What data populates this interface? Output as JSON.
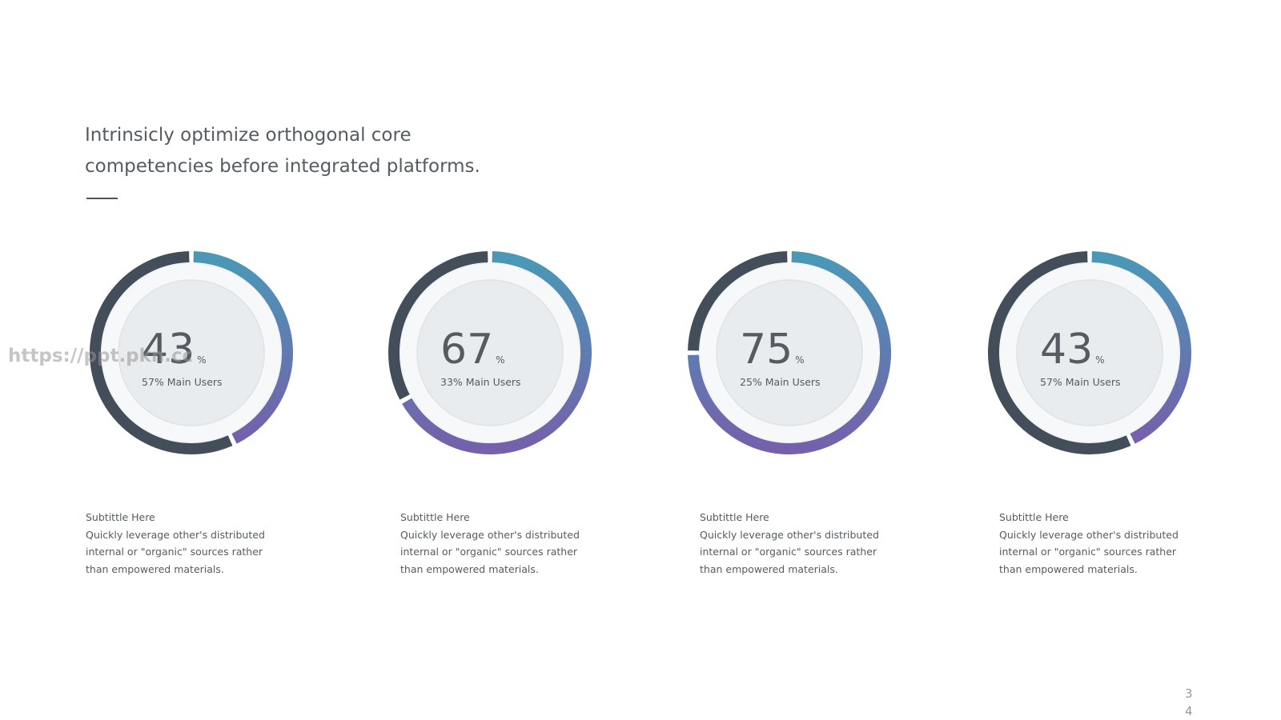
{
  "title": "Intrinsicly optimize orthogonal core competencies before integrated platforms.",
  "watermark": "https://ppt.pkn.cc",
  "page_number": "34",
  "chart_data": [
    {
      "type": "donut",
      "values": [
        43,
        57
      ],
      "unit": "%",
      "label": "57% Main Users",
      "subtitle": "Subtittle Here",
      "text": "Quickly leverage other's distributed internal or \"organic\" sources rather than empowered materials.",
      "gradient": [
        "#4a98b6",
        "#7560ab"
      ],
      "rest_color": "#434e5a"
    },
    {
      "type": "donut",
      "values": [
        67,
        33
      ],
      "unit": "%",
      "label": "33% Main Users",
      "subtitle": "Subtittle Here",
      "text": "Quickly leverage other's distributed internal or \"organic\" sources rather than empowered materials.",
      "gradient": [
        "#4a98b6",
        "#7560ab"
      ],
      "rest_color": "#434e5a"
    },
    {
      "type": "donut",
      "values": [
        75,
        25
      ],
      "unit": "%",
      "label": "25% Main Users",
      "subtitle": "Subtittle Here",
      "text": "Quickly leverage other's distributed internal or \"organic\" sources rather than empowered materials.",
      "gradient": [
        "#4a98b6",
        "#7560ab"
      ],
      "rest_color": "#434e5a"
    },
    {
      "type": "donut",
      "values": [
        43,
        57
      ],
      "unit": "%",
      "label": "57% Main Users",
      "subtitle": "Subtittle Here",
      "text": "Quickly leverage other's distributed internal or \"organic\" sources rather than empowered materials.",
      "gradient": [
        "#4a98b6",
        "#7560ab"
      ],
      "rest_color": "#434e5a"
    }
  ]
}
